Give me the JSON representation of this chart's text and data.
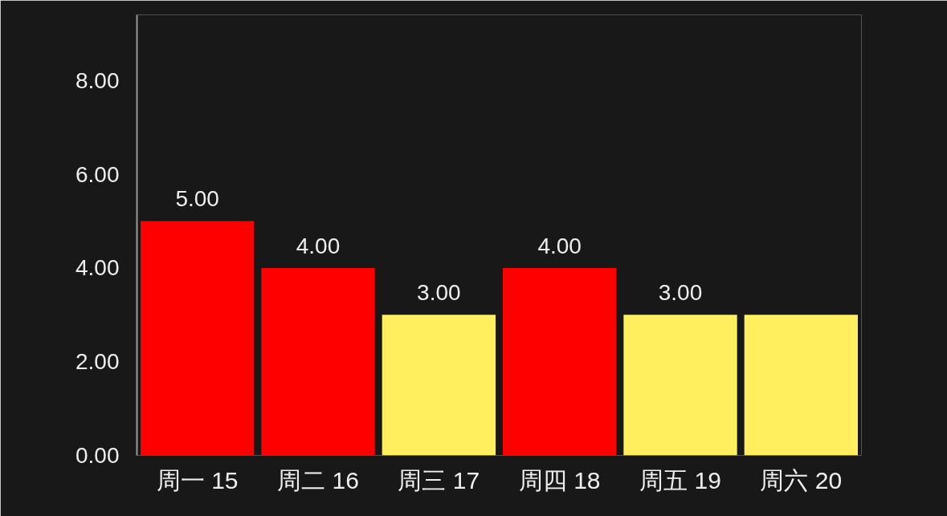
{
  "chart_data": {
    "type": "bar",
    "categories": [
      "周一 15",
      "周二 16",
      "周三 17",
      "周四 18",
      "周五 19",
      "周六 20"
    ],
    "values": [
      5,
      4,
      3,
      4,
      3,
      3
    ],
    "colors": [
      "#ff0000",
      "#ff0000",
      "#ffee5e",
      "#ff0000",
      "#ffee5e",
      "#ffee5e"
    ],
    "value_labels": [
      "5.00",
      "4.00",
      "3.00",
      "4.00",
      "3.00",
      null
    ],
    "ylim": [
      0,
      9.4
    ],
    "yticks": [
      {
        "value": 0,
        "label": "0.00"
      },
      {
        "value": 2,
        "label": "2.00"
      },
      {
        "value": 4,
        "label": "4.00"
      },
      {
        "value": 6,
        "label": "6.00"
      },
      {
        "value": 8,
        "label": "8.00"
      }
    ],
    "grid": false
  }
}
